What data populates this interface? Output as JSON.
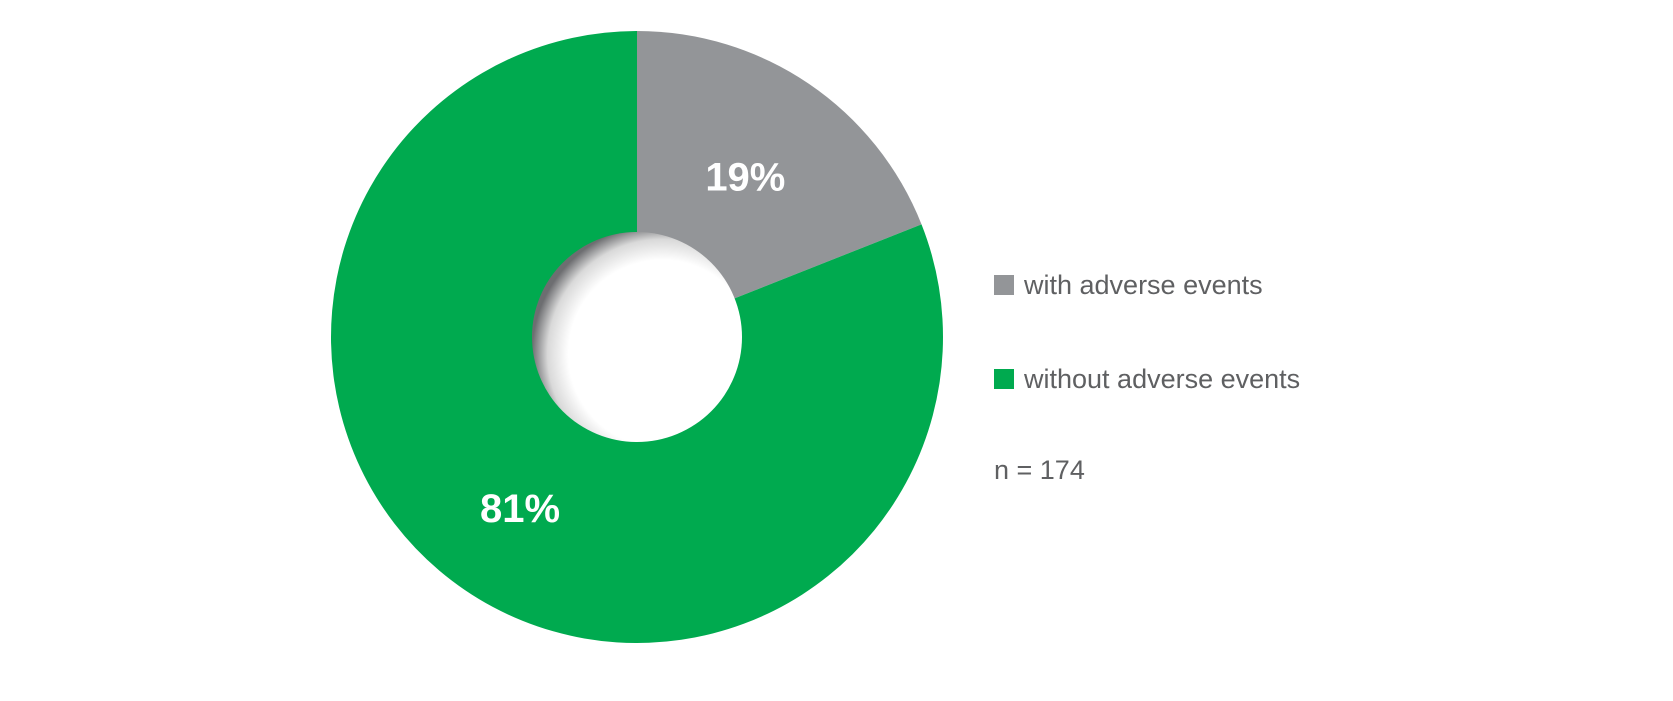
{
  "chart_data": {
    "type": "pie",
    "donut": true,
    "categories": [
      "with adverse events",
      "without adverse events"
    ],
    "values": [
      19,
      81
    ],
    "data_labels": [
      "19%",
      "81%"
    ],
    "colors": [
      "#939598",
      "#00aa4f"
    ],
    "legend_position": "right",
    "note": "n = 174"
  }
}
